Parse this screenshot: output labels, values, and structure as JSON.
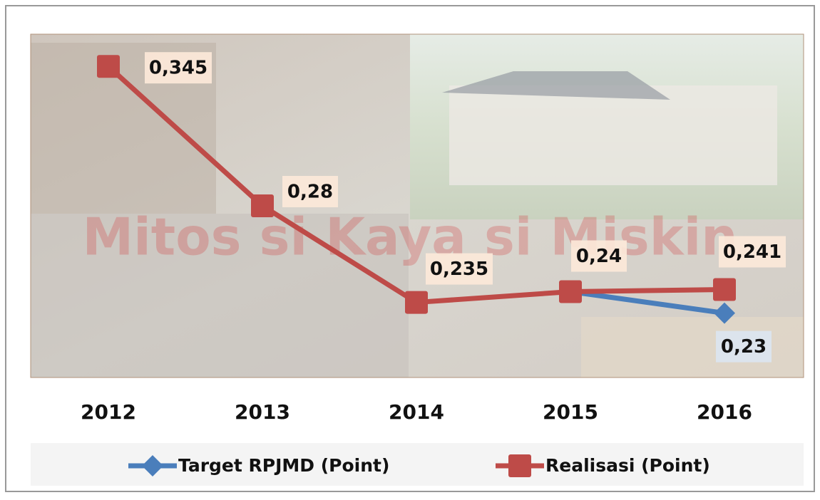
{
  "chart_data": {
    "type": "line",
    "background_text": "Mitos si Kaya si Miskin",
    "categories": [
      "2012",
      "2013",
      "2014",
      "2015",
      "2016"
    ],
    "series": [
      {
        "name": "Target RPJMD (Point)",
        "color": "#4a7ebb",
        "marker": "diamond",
        "values": [
          null,
          null,
          null,
          0.24,
          0.23
        ],
        "value_labels": [
          null,
          null,
          null,
          null,
          "0,23"
        ]
      },
      {
        "name": "Realisasi (Point)",
        "color": "#be4b48",
        "marker": "square",
        "values": [
          0.345,
          0.28,
          0.235,
          0.24,
          0.241
        ],
        "value_labels": [
          "0,345",
          "0,28",
          "0,235",
          "0,24",
          "0,241"
        ]
      }
    ],
    "ylim": [
      0.2,
      0.36
    ],
    "legend": "bottom"
  }
}
